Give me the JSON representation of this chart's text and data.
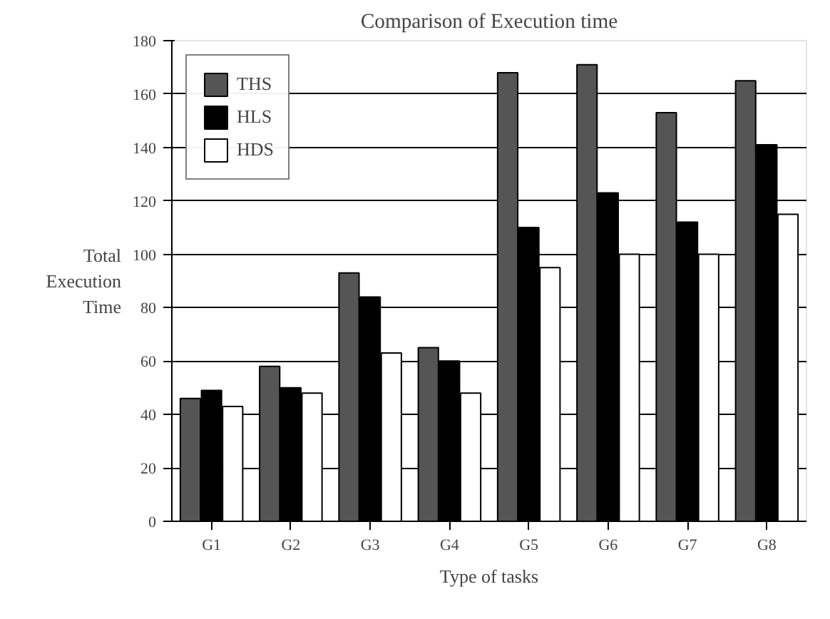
{
  "chart_data": {
    "type": "bar",
    "title": "Comparison of Execution time",
    "xlabel": "Type of tasks",
    "ylabel": "Total Execution Time",
    "categories": [
      "G1",
      "G2",
      "G3",
      "G4",
      "G5",
      "G6",
      "G7",
      "G8"
    ],
    "series": [
      {
        "name": "THS",
        "color": "#555555",
        "values": [
          46,
          58,
          93,
          65,
          168,
          171,
          153,
          165
        ]
      },
      {
        "name": "HLS",
        "color": "#000000",
        "values": [
          49,
          50,
          84,
          60,
          110,
          123,
          112,
          141
        ]
      },
      {
        "name": "HDS",
        "color": "#ffffff",
        "values": [
          43,
          48,
          63,
          48,
          95,
          100,
          100,
          115
        ]
      }
    ],
    "ylim": [
      0,
      180
    ],
    "yticks": [
      0,
      20,
      40,
      60,
      80,
      100,
      120,
      140,
      160,
      180
    ],
    "grid": "y",
    "legend": "top left"
  }
}
